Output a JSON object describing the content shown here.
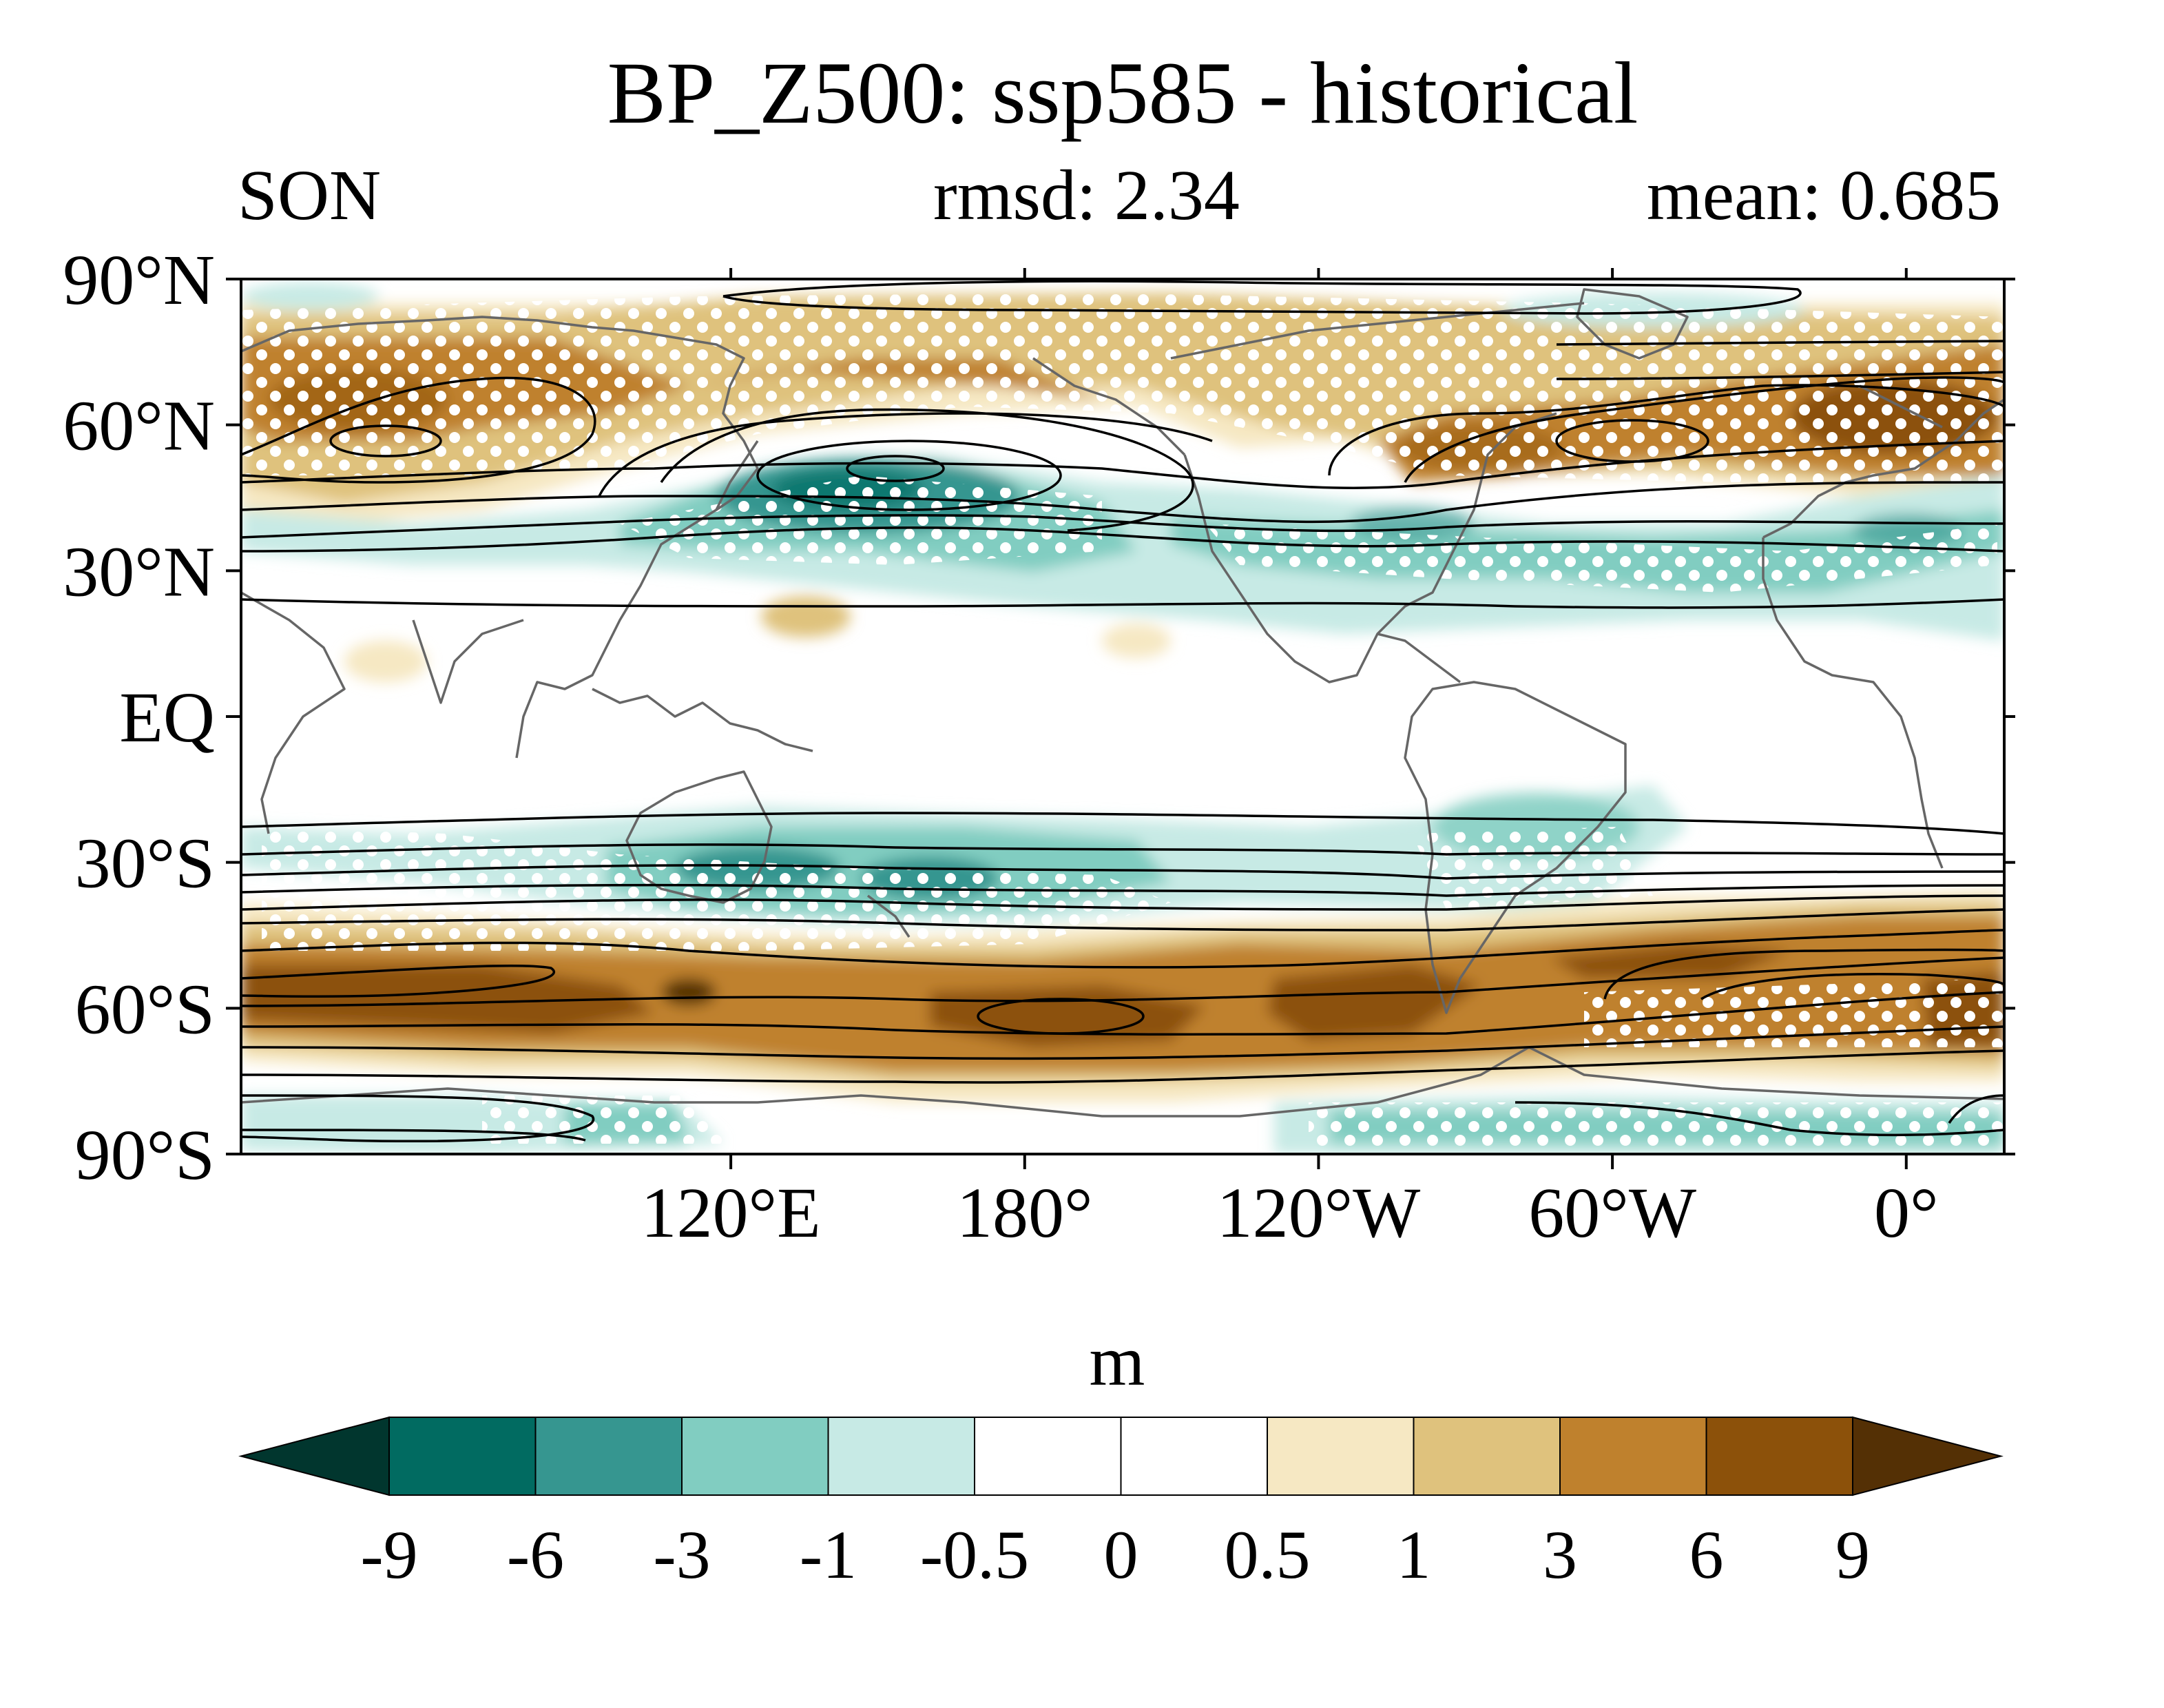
{
  "header": {
    "title": "BP_Z500: ssp585 - historical",
    "season": "SON",
    "rmsd": "rmsd: 2.34",
    "mean": "mean: 0.685"
  },
  "map": {
    "projection": "cylindrical equidistant, central longitude 180°",
    "lon_range": [
      20,
      380
    ],
    "lat_range": [
      -90,
      90
    ],
    "lat_ticks": [
      {
        "lat": 90,
        "label": "90°N"
      },
      {
        "lat": 60,
        "label": "60°N"
      },
      {
        "lat": 30,
        "label": "30°N"
      },
      {
        "lat": 0,
        "label": "EQ"
      },
      {
        "lat": -30,
        "label": "30°S"
      },
      {
        "lat": -60,
        "label": "60°S"
      },
      {
        "lat": -90,
        "label": "90°S"
      }
    ],
    "lon_ticks": [
      {
        "lon": 120,
        "label": "120°E"
      },
      {
        "lon": 180,
        "label": "180°"
      },
      {
        "lon": 240,
        "label": "120°W"
      },
      {
        "lon": 300,
        "label": "60°W"
      },
      {
        "lon": 360,
        "label": "0°"
      }
    ],
    "colors": {
      "coast": "#666666",
      "contour": "#000000",
      "stipple": "#ffffff"
    }
  },
  "colorbar": {
    "unit": "m",
    "levels": [
      "-9",
      "-6",
      "-3",
      "-1",
      "-0.5",
      "0",
      "0.5",
      "1",
      "3",
      "6",
      "9"
    ],
    "colors": [
      "#01362e",
      "#016b61",
      "#369690",
      "#81cdc1",
      "#c7eae5",
      "#ffffff",
      "#ffffff",
      "#f6e8c3",
      "#dfc27d",
      "#bf812d",
      "#8c510a",
      "#543005"
    ]
  }
}
